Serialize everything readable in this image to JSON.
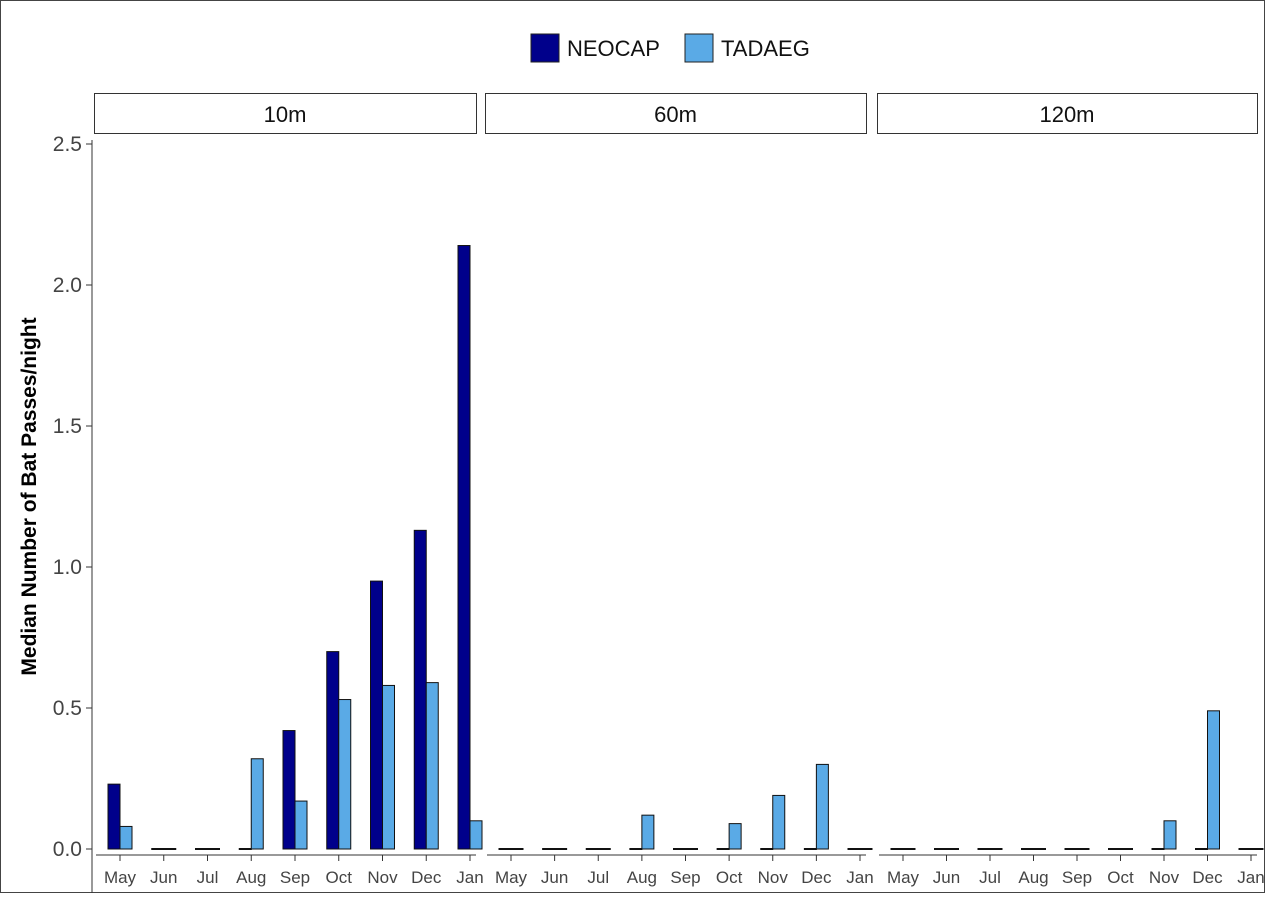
{
  "chart_data": {
    "type": "bar",
    "ylabel": "Median Number of Bat Passes/night",
    "xlabel": "",
    "ylim": [
      0,
      2.5
    ],
    "yticks": [
      "0.0",
      "0.5",
      "1.0",
      "1.5",
      "2.0",
      "2.5"
    ],
    "categories": [
      "May",
      "Jun",
      "Jul",
      "Aug",
      "Sep",
      "Oct",
      "Nov",
      "Dec",
      "Jan"
    ],
    "legend": {
      "position": "top",
      "entries": [
        {
          "name": "NEOCAP",
          "color": "#00008B"
        },
        {
          "name": "TADAEG",
          "color": "#5AAAE6"
        }
      ]
    },
    "grid": false,
    "panels": [
      {
        "label": "10m",
        "series": [
          {
            "name": "NEOCAP",
            "values": [
              0.23,
              0,
              0,
              0,
              0.42,
              0.7,
              0.95,
              1.13,
              2.14
            ]
          },
          {
            "name": "TADAEG",
            "values": [
              0.08,
              0,
              0,
              0.32,
              0.17,
              0.53,
              0.58,
              0.59,
              0.1
            ]
          }
        ]
      },
      {
        "label": "60m",
        "series": [
          {
            "name": "NEOCAP",
            "values": [
              0,
              0,
              0,
              0,
              0,
              0,
              0,
              0,
              0
            ]
          },
          {
            "name": "TADAEG",
            "values": [
              0,
              0,
              0,
              0.12,
              0,
              0.09,
              0.19,
              0.3,
              0
            ]
          }
        ]
      },
      {
        "label": "120m",
        "series": [
          {
            "name": "NEOCAP",
            "values": [
              0,
              0,
              0,
              0,
              0,
              0,
              0,
              0,
              0
            ]
          },
          {
            "name": "TADAEG",
            "values": [
              0,
              0,
              0,
              0,
              0,
              0,
              0.1,
              0.49,
              0
            ]
          }
        ]
      }
    ]
  }
}
